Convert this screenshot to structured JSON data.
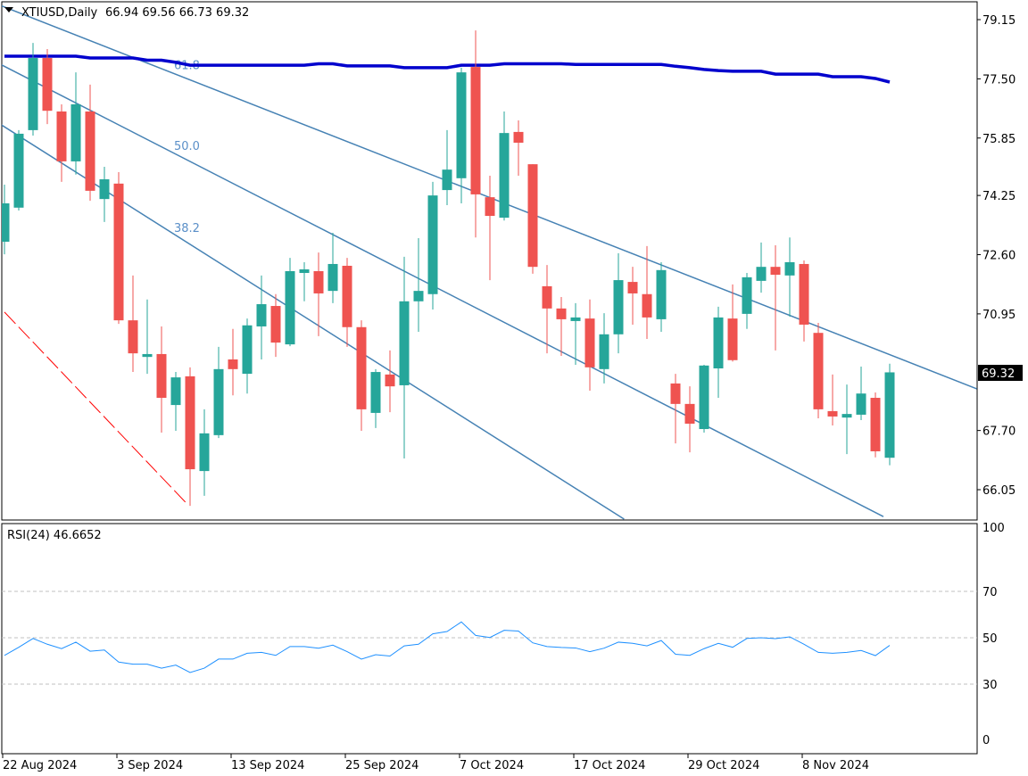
{
  "chart_data": {
    "type": "candlestick",
    "symbol": "XTIUSD",
    "timeframe": "Daily",
    "title": "XTIUSD,Daily",
    "ohlc_readout": "66.94 69.56 66.73 69.32",
    "current_price": "69.32",
    "colors": {
      "up": "#26a69a",
      "down": "#ef5350",
      "ma": "#0000cd",
      "fib": "#4682b4",
      "trend": "#ff0000",
      "rsi": "#1e90ff"
    },
    "y_ticks": [
      "79.15",
      "77.50",
      "75.85",
      "74.25",
      "72.60",
      "70.95",
      "67.70",
      "66.05"
    ],
    "ylim": [
      65.5,
      79.7
    ],
    "x_ticks": [
      {
        "index": 0,
        "label": "22 Aug 2024"
      },
      {
        "index": 8,
        "label": "3 Sep 2024"
      },
      {
        "index": 16,
        "label": "13 Sep 2024"
      },
      {
        "index": 24,
        "label": "25 Sep 2024"
      },
      {
        "index": 32,
        "label": "7 Oct 2024"
      },
      {
        "index": 40,
        "label": "17 Oct 2024"
      },
      {
        "index": 48,
        "label": "29 Oct 2024"
      },
      {
        "index": 56,
        "label": "8 Nov 2024"
      }
    ],
    "candles": [
      [
        72.96,
        74.55,
        72.61,
        74.03
      ],
      [
        73.91,
        76.07,
        73.83,
        75.97
      ],
      [
        76.07,
        78.5,
        75.92,
        78.08
      ],
      [
        78.08,
        78.33,
        76.24,
        76.61
      ],
      [
        76.59,
        76.79,
        74.63,
        75.2
      ],
      [
        75.2,
        77.68,
        74.83,
        76.79
      ],
      [
        76.59,
        77.34,
        74.1,
        74.38
      ],
      [
        74.15,
        75.05,
        73.51,
        74.7
      ],
      [
        74.58,
        74.9,
        70.67,
        70.77
      ],
      [
        70.77,
        72.02,
        69.33,
        69.85
      ],
      [
        69.75,
        71.35,
        69.28,
        69.83
      ],
      [
        69.83,
        70.6,
        67.64,
        68.61
      ],
      [
        68.41,
        69.33,
        67.69,
        69.18
      ],
      [
        69.21,
        69.46,
        65.6,
        66.62
      ],
      [
        66.57,
        68.29,
        65.88,
        67.62
      ],
      [
        67.57,
        70.03,
        67.49,
        69.41
      ],
      [
        69.68,
        70.53,
        68.68,
        69.41
      ],
      [
        69.28,
        70.82,
        68.73,
        70.63
      ],
      [
        70.6,
        72.02,
        69.68,
        71.22
      ],
      [
        71.17,
        71.5,
        69.75,
        70.15
      ],
      [
        70.1,
        72.51,
        70.05,
        72.14
      ],
      [
        72.09,
        72.39,
        71.3,
        72.19
      ],
      [
        72.14,
        72.66,
        70.33,
        71.52
      ],
      [
        71.59,
        73.21,
        71.25,
        72.34
      ],
      [
        72.29,
        72.51,
        70.03,
        70.58
      ],
      [
        70.58,
        70.77,
        67.69,
        68.29
      ],
      [
        68.19,
        69.41,
        67.77,
        69.33
      ],
      [
        69.26,
        69.93,
        68.21,
        68.93
      ],
      [
        68.96,
        72.54,
        66.92,
        71.3
      ],
      [
        71.3,
        73.06,
        70.45,
        71.59
      ],
      [
        71.5,
        74.63,
        71.07,
        74.25
      ],
      [
        74.4,
        76.07,
        73.98,
        74.97
      ],
      [
        74.73,
        77.81,
        74.03,
        77.68
      ],
      [
        77.83,
        78.85,
        73.08,
        74.28
      ],
      [
        74.2,
        74.8,
        71.89,
        73.68
      ],
      [
        73.63,
        76.59,
        73.55,
        75.99
      ],
      [
        76.02,
        76.34,
        74.8,
        75.72
      ],
      [
        75.12,
        75.12,
        72.07,
        72.26
      ],
      [
        71.72,
        72.31,
        69.85,
        71.1
      ],
      [
        71.1,
        71.42,
        69.78,
        70.8
      ],
      [
        70.75,
        71.25,
        69.53,
        70.85
      ],
      [
        70.82,
        71.35,
        68.81,
        69.46
      ],
      [
        69.41,
        70.97,
        69.01,
        70.38
      ],
      [
        70.38,
        72.64,
        69.85,
        71.89
      ],
      [
        71.84,
        72.26,
        70.65,
        71.52
      ],
      [
        71.5,
        72.84,
        70.25,
        70.85
      ],
      [
        70.8,
        72.39,
        70.45,
        72.17
      ],
      [
        69.01,
        69.28,
        67.34,
        68.44
      ],
      [
        68.44,
        68.93,
        67.09,
        67.89
      ],
      [
        67.74,
        69.53,
        67.64,
        69.51
      ],
      [
        69.43,
        71.15,
        68.61,
        70.85
      ],
      [
        70.82,
        71.77,
        69.62,
        69.66
      ],
      [
        70.95,
        72.09,
        70.53,
        71.97
      ],
      [
        71.87,
        72.94,
        71.54,
        72.26
      ],
      [
        72.26,
        72.86,
        69.93,
        72.04
      ],
      [
        72.02,
        73.08,
        70.87,
        72.39
      ],
      [
        72.34,
        72.44,
        70.18,
        70.65
      ],
      [
        70.42,
        70.7,
        68.04,
        68.29
      ],
      [
        68.24,
        69.26,
        67.84,
        68.09
      ],
      [
        68.06,
        68.98,
        67.04,
        68.16
      ],
      [
        68.14,
        69.48,
        67.99,
        68.73
      ],
      [
        68.61,
        68.76,
        66.95,
        67.12
      ],
      [
        66.94,
        69.56,
        66.73,
        69.32
      ]
    ],
    "moving_average": [
      78.13,
      78.13,
      78.13,
      78.13,
      78.13,
      78.13,
      78.08,
      78.08,
      78.08,
      78.08,
      78.02,
      78.02,
      77.96,
      77.88,
      77.88,
      77.88,
      77.88,
      77.88,
      77.88,
      77.88,
      77.88,
      77.88,
      77.92,
      77.92,
      77.86,
      77.86,
      77.86,
      77.86,
      77.81,
      77.81,
      77.81,
      77.81,
      77.88,
      77.88,
      77.88,
      77.92,
      77.92,
      77.92,
      77.92,
      77.92,
      77.9,
      77.9,
      77.9,
      77.9,
      77.9,
      77.9,
      77.9,
      77.85,
      77.81,
      77.76,
      77.73,
      77.71,
      77.71,
      77.71,
      77.63,
      77.63,
      77.63,
      77.63,
      77.56,
      77.56,
      77.56,
      77.51,
      77.41
    ],
    "fib_fan": [
      {
        "label": "61.8",
        "start": {
          "index": -0.31,
          "price": 79.55
        },
        "end": {
          "index": 68.1,
          "price": 68.86
        }
      },
      {
        "label": "50.0",
        "start": {
          "index": -0.31,
          "price": 77.91
        },
        "end": {
          "index": 61.56,
          "price": 65.3
        }
      },
      {
        "label": "38.2",
        "start": {
          "index": -0.31,
          "price": 76.24
        },
        "end": {
          "index": 43.4,
          "price": 65.23
        }
      }
    ],
    "trend_line": {
      "style": "dashed",
      "start": {
        "index": 0,
        "price": 71.0
      },
      "end": {
        "index": 12.8,
        "price": 65.65
      }
    },
    "rsi": {
      "label": "RSI(24) 46.6652",
      "levels": [
        70,
        50,
        30
      ],
      "y_ticks": [
        "100",
        "70",
        "50",
        "30",
        "0"
      ],
      "ylim": [
        0,
        100
      ],
      "values": [
        42.4,
        45.9,
        49.7,
        47.2,
        45.3,
        48.1,
        44.2,
        44.7,
        39.5,
        38.6,
        38.6,
        36.9,
        38.2,
        35.0,
        36.9,
        40.8,
        40.8,
        43.3,
        43.7,
        42.4,
        46.2,
        46.2,
        45.5,
        46.8,
        44.0,
        40.8,
        42.7,
        42.1,
        46.5,
        47.2,
        51.7,
        52.7,
        56.8,
        51.0,
        50.1,
        53.2,
        52.9,
        47.8,
        46.2,
        45.8,
        45.6,
        44.0,
        45.5,
        48.1,
        47.6,
        46.5,
        48.8,
        42.9,
        42.4,
        45.3,
        47.6,
        45.9,
        49.7,
        50.0,
        49.6,
        50.4,
        47.2,
        43.7,
        43.3,
        43.7,
        44.5,
        42.3,
        46.7
      ]
    }
  }
}
